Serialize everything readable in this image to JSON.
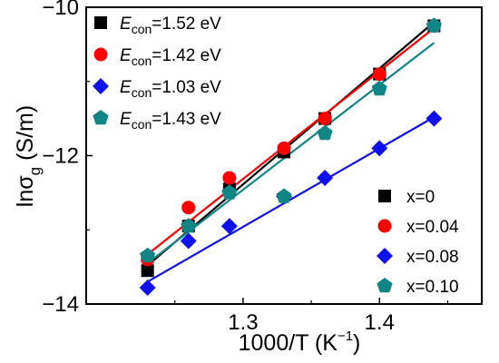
{
  "chart_data": {
    "type": "scatter",
    "xlabel": {
      "main": "1000/T (K",
      "sup": "−1",
      "tail": ")"
    },
    "ylabel": {
      "main": "lnσ",
      "sub": "g",
      "tail": " (S/m)"
    },
    "xlim": [
      1.185,
      1.475
    ],
    "ylim": [
      -14,
      -10
    ],
    "xticks": [
      {
        "v": 1.3,
        "label": "1.3"
      },
      {
        "v": 1.4,
        "label": "1.4"
      }
    ],
    "yticks": [
      {
        "v": -10,
        "label": "−10"
      },
      {
        "v": -12,
        "label": "−12"
      },
      {
        "v": -14,
        "label": "−14"
      }
    ],
    "series": [
      {
        "name": "x=0",
        "color": "#000000",
        "marker": "square",
        "x": [
          1.23,
          1.26,
          1.29,
          1.33,
          1.36,
          1.4,
          1.44
        ],
        "y": [
          -13.55,
          -12.95,
          -12.45,
          -11.95,
          -11.5,
          -10.9,
          -10.25
        ],
        "fit": {
          "x": [
            1.23,
            1.44
          ],
          "y": [
            -13.48,
            -10.2
          ]
        },
        "energy_prefix": "E",
        "energy_sub": "con",
        "energy_value": "=1.52 eV"
      },
      {
        "name": "x=0.04",
        "color": "#ff0000",
        "marker": "circle",
        "x": [
          1.23,
          1.26,
          1.29,
          1.33,
          1.36,
          1.4,
          1.44
        ],
        "y": [
          -13.4,
          -12.7,
          -12.3,
          -11.9,
          -11.5,
          -10.9,
          -10.25
        ],
        "fit": {
          "x": [
            1.23,
            1.44
          ],
          "y": [
            -13.33,
            -10.28
          ]
        },
        "energy_prefix": "E",
        "energy_sub": "con",
        "energy_value": "=1.42 eV"
      },
      {
        "name": "x=0.08",
        "color": "#1010ee",
        "marker": "diamond",
        "x": [
          1.23,
          1.26,
          1.29,
          1.33,
          1.36,
          1.4,
          1.44
        ],
        "y": [
          -13.78,
          -13.15,
          -12.95,
          -12.55,
          -12.3,
          -11.9,
          -11.5
        ],
        "fit": {
          "x": [
            1.23,
            1.44
          ],
          "y": [
            -13.7,
            -11.48
          ]
        },
        "energy_prefix": "E",
        "energy_sub": "con",
        "energy_value": "=1.03 eV"
      },
      {
        "name": "x=0.10",
        "color": "#108585",
        "marker": "pentagon",
        "x": [
          1.23,
          1.26,
          1.29,
          1.33,
          1.36,
          1.4,
          1.44
        ],
        "y": [
          -13.35,
          -12.95,
          -12.5,
          -12.55,
          -11.7,
          -11.1,
          -10.25
        ],
        "fit": {
          "x": [
            1.23,
            1.44
          ],
          "y": [
            -13.45,
            -10.48
          ]
        },
        "energy_prefix": "E",
        "energy_sub": "con",
        "energy_value": "=1.43 eV"
      }
    ],
    "legend_energy_position": "top-left",
    "legend_series_position": "bottom-right",
    "grid": false
  }
}
